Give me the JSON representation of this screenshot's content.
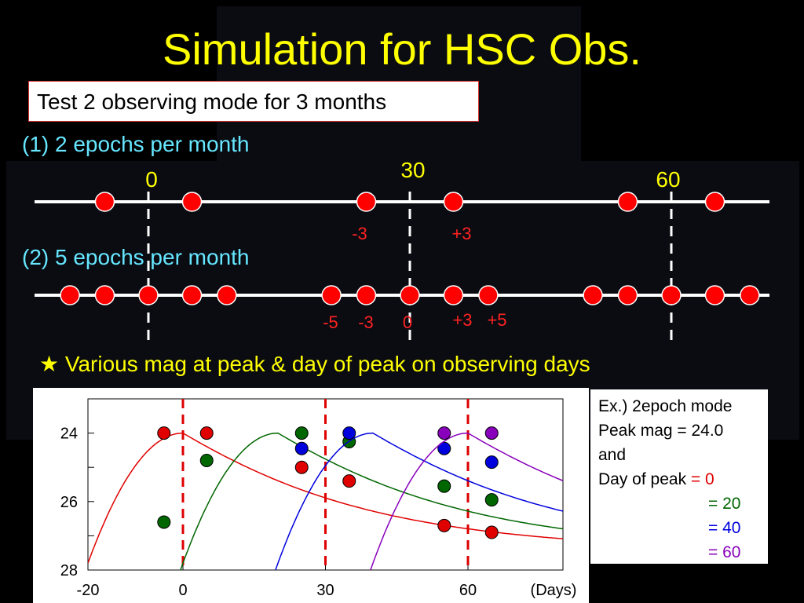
{
  "slide": {
    "title": "Simulation for HSC Obs.",
    "box_text": "Test 2 observing mode for 3 months",
    "mode1_label": "(1) 2 epochs per month",
    "mode2_label": "(2) 5 epochs per month",
    "headline": "★ Various mag at peak & day of peak on observing days"
  },
  "timeline": {
    "markers": [
      {
        "label": "0",
        "day": 0
      },
      {
        "label": "30",
        "day": 30
      },
      {
        "label": "60",
        "day": 60
      }
    ],
    "mode1_days": [
      -5,
      5,
      25,
      35,
      55,
      65
    ],
    "mode2_days": [
      -9,
      -5,
      0,
      5,
      9,
      21,
      25,
      30,
      35,
      39,
      51,
      55,
      60,
      65,
      69
    ],
    "mode1_annotations": [
      "-3",
      "+3"
    ],
    "mode2_annotations": [
      "-5",
      "-3",
      "0",
      "+3",
      "+5"
    ]
  },
  "caption": {
    "line1": "Ex.) 2epoch mode",
    "line2": "Peak mag = 24.0",
    "line3": "and",
    "line4_prefix": "Day of peak ",
    "peaks": [
      "= 0",
      "= 20",
      "= 40",
      "= 60"
    ]
  },
  "colors": {
    "title": "#ffff00",
    "mode_label": "#66e6ff",
    "point": "#ff0000",
    "annotation": "#ff2222",
    "curves": [
      "#e00000",
      "#006600",
      "#0000dd",
      "#8800bb"
    ]
  },
  "chart_data": {
    "type": "line",
    "xlabel": "(Days)",
    "xlim": [
      -20,
      80
    ],
    "ylim": [
      28,
      23
    ],
    "x_ticks": [
      -20,
      0,
      30,
      60
    ],
    "y_ticks": [
      24,
      26,
      28
    ],
    "y_inverted": true,
    "vertical_lines": [
      0,
      30,
      60
    ],
    "series": [
      {
        "color": "#e00000",
        "peak_day": 0,
        "peak_mag": 24.0,
        "points": [
          {
            "x": -4,
            "y": 24.0
          },
          {
            "x": 5,
            "y": 24.0
          },
          {
            "x": 25,
            "y": 25.0
          },
          {
            "x": 35,
            "y": 25.4
          },
          {
            "x": 55,
            "y": 26.7
          },
          {
            "x": 65,
            "y": 26.9
          }
        ]
      },
      {
        "color": "#006600",
        "peak_day": 20,
        "peak_mag": 24.0,
        "points": [
          {
            "x": -4,
            "y": 26.6
          },
          {
            "x": 5,
            "y": 24.8
          },
          {
            "x": 25,
            "y": 24.0
          },
          {
            "x": 35,
            "y": 24.25
          },
          {
            "x": 55,
            "y": 25.55
          },
          {
            "x": 65,
            "y": 25.95
          }
        ]
      },
      {
        "color": "#0000dd",
        "peak_day": 40,
        "peak_mag": 24.0,
        "points": [
          {
            "x": 25,
            "y": 24.45
          },
          {
            "x": 35,
            "y": 24.0
          },
          {
            "x": 55,
            "y": 24.45
          },
          {
            "x": 65,
            "y": 24.85
          }
        ]
      },
      {
        "color": "#8800bb",
        "peak_day": 60,
        "peak_mag": 24.0,
        "points": [
          {
            "x": 55,
            "y": 24.0
          },
          {
            "x": 65,
            "y": 24.0
          }
        ]
      }
    ]
  }
}
